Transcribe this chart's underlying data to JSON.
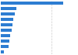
{
  "values": [
    5.9,
    1.5,
    1.35,
    1.2,
    1.1,
    1.0,
    0.9,
    0.8,
    0.7,
    0.3
  ],
  "bar_color": "#2d7dd2",
  "background_color": "#ffffff",
  "xlim": [
    0,
    7.2
  ],
  "grid_x": [
    4.8
  ],
  "grid_color": "#cccccc",
  "bar_height": 0.55,
  "n_bars": 10
}
